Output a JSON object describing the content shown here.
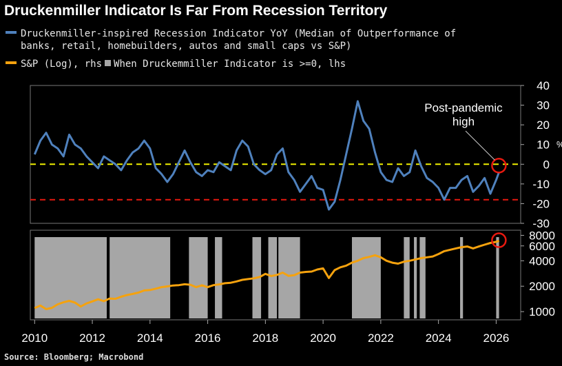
{
  "title": "Druckenmiller Indicator Is Far From Recession Territory",
  "legend": {
    "line1": "Druckenmiller-inspired Recession Indicator YoY (Median of Outperformance of",
    "line2": "banks, retail, homebuilders, autos and small caps vs S&P)",
    "sp_label": "S&P (Log), rhs",
    "shade_label": "When Druckemmiller Indicator is >=0, lhs"
  },
  "source": "Source: Bloomberg; Macrobond",
  "colors": {
    "indicator": "#4f81bd",
    "sp": "#f5a20e",
    "shade": "#a6a6a6",
    "zero_line": "#f0f000",
    "recession_line": "#e8190f",
    "highlight": "#e8190f"
  },
  "chart_data": [
    {
      "type": "line",
      "name": "Druckenmiller-inspired Recession Indicator YoY",
      "axis_side": "right",
      "ylabel": "%",
      "ylim": [
        -30,
        40
      ],
      "yticks": [
        "40",
        "30",
        "20",
        "10",
        "0",
        "-10",
        "-20",
        "-30"
      ],
      "yticks_values": [
        40,
        30,
        20,
        10,
        0,
        -10,
        -20,
        -30
      ],
      "reference_lines": [
        {
          "value": 0,
          "style": "dashed",
          "color": "yellow"
        },
        {
          "value": -18,
          "style": "dashed",
          "color": "red"
        }
      ],
      "annotation": {
        "text_lines": [
          "Post-pandemic",
          "high"
        ],
        "x": 2026.0,
        "y": 0
      },
      "x": [
        2010.0,
        2010.2,
        2010.4,
        2010.6,
        2010.8,
        2011.0,
        2011.2,
        2011.4,
        2011.6,
        2011.8,
        2012.0,
        2012.2,
        2012.4,
        2012.6,
        2012.8,
        2013.0,
        2013.2,
        2013.4,
        2013.6,
        2013.8,
        2014.0,
        2014.2,
        2014.4,
        2014.6,
        2014.8,
        2015.0,
        2015.2,
        2015.4,
        2015.6,
        2015.8,
        2016.0,
        2016.2,
        2016.4,
        2016.6,
        2016.8,
        2017.0,
        2017.2,
        2017.4,
        2017.6,
        2017.8,
        2018.0,
        2018.2,
        2018.4,
        2018.6,
        2018.8,
        2019.0,
        2019.2,
        2019.4,
        2019.6,
        2019.8,
        2020.0,
        2020.2,
        2020.4,
        2020.6,
        2020.8,
        2021.0,
        2021.2,
        2021.4,
        2021.6,
        2021.8,
        2022.0,
        2022.2,
        2022.4,
        2022.6,
        2022.8,
        2023.0,
        2023.2,
        2023.4,
        2023.6,
        2023.8,
        2024.0,
        2024.2,
        2024.4,
        2024.6,
        2024.8,
        2025.0,
        2025.2,
        2025.4,
        2025.6,
        2025.8,
        2026.0,
        2026.1
      ],
      "values": [
        5,
        12,
        16,
        10,
        8,
        4,
        15,
        10,
        8,
        4,
        1,
        -2,
        4,
        2,
        0,
        -3,
        2,
        6,
        8,
        12,
        8,
        -2,
        -5,
        -9,
        -5,
        1,
        7,
        1,
        -4,
        -6,
        -3,
        -4,
        1,
        -1,
        -3,
        7,
        12,
        9,
        0,
        -3,
        -5,
        -3,
        5,
        8,
        -4,
        -8,
        -14,
        -10,
        -6,
        -12,
        -13,
        -23,
        -19,
        -8,
        5,
        18,
        32,
        22,
        18,
        6,
        -4,
        -8,
        -9,
        -2,
        -6,
        -4,
        7,
        -1,
        -7,
        -9,
        -12,
        -18,
        -12,
        -12,
        -8,
        -6,
        -14,
        -11,
        -7,
        -15,
        -8,
        -4
      ]
    },
    {
      "type": "line",
      "name": "S&P (Log)",
      "axis_side": "right",
      "scale": "log",
      "ylim": [
        800,
        9200
      ],
      "yticks": [
        "8000",
        "6000",
        "4000",
        "2000",
        "1000"
      ],
      "yticks_values": [
        8000,
        6000,
        4000,
        2000,
        1000
      ],
      "shaded_periods": [
        [
          2010.0,
          2012.5
        ],
        [
          2012.6,
          2014.7
        ],
        [
          2015.35,
          2016.0
        ],
        [
          2016.25,
          2016.5
        ],
        [
          2017.55,
          2017.85
        ],
        [
          2018.1,
          2018.4
        ],
        [
          2018.45,
          2019.2
        ],
        [
          2021.0,
          2022.0
        ],
        [
          2022.8,
          2023.0
        ],
        [
          2023.15,
          2023.25
        ],
        [
          2023.35,
          2023.55
        ],
        [
          2024.75,
          2024.85
        ],
        [
          2026.0,
          2026.1
        ]
      ],
      "annotation": {
        "x": 2026.0,
        "y": 7000,
        "marker": "circle"
      },
      "x": [
        2010.0,
        2010.2,
        2010.4,
        2010.6,
        2010.8,
        2011.0,
        2011.2,
        2011.4,
        2011.6,
        2011.8,
        2012.0,
        2012.2,
        2012.4,
        2012.6,
        2012.8,
        2013.0,
        2013.2,
        2013.4,
        2013.6,
        2013.8,
        2014.0,
        2014.2,
        2014.4,
        2014.6,
        2014.8,
        2015.0,
        2015.2,
        2015.4,
        2015.6,
        2015.8,
        2016.0,
        2016.2,
        2016.4,
        2016.6,
        2016.8,
        2017.0,
        2017.2,
        2017.4,
        2017.6,
        2017.8,
        2018.0,
        2018.2,
        2018.4,
        2018.6,
        2018.8,
        2019.0,
        2019.2,
        2019.4,
        2019.6,
        2019.8,
        2020.0,
        2020.2,
        2020.4,
        2020.6,
        2020.8,
        2021.0,
        2021.2,
        2021.4,
        2021.6,
        2021.8,
        2022.0,
        2022.2,
        2022.4,
        2022.6,
        2022.8,
        2023.0,
        2023.2,
        2023.4,
        2023.6,
        2023.8,
        2024.0,
        2024.2,
        2024.4,
        2024.6,
        2024.8,
        2025.0,
        2025.2,
        2025.4,
        2025.6,
        2025.8,
        2026.0,
        2026.1
      ],
      "values": [
        1100,
        1180,
        1070,
        1110,
        1220,
        1290,
        1340,
        1280,
        1150,
        1250,
        1320,
        1400,
        1330,
        1430,
        1420,
        1500,
        1570,
        1620,
        1680,
        1780,
        1800,
        1870,
        1950,
        1990,
        2040,
        2060,
        2110,
        2080,
        1950,
        2050,
        1950,
        2060,
        2100,
        2170,
        2200,
        2280,
        2380,
        2430,
        2480,
        2570,
        2800,
        2640,
        2720,
        2900,
        2650,
        2700,
        2900,
        2950,
        2980,
        3150,
        3250,
        2500,
        3100,
        3350,
        3500,
        3800,
        4000,
        4300,
        4450,
        4650,
        4400,
        4000,
        3800,
        3700,
        3900,
        4000,
        4150,
        4300,
        4400,
        4500,
        4800,
        5200,
        5400,
        5600,
        5800,
        5900,
        5600,
        5900,
        6200,
        6500,
        6700,
        6900
      ]
    }
  ],
  "x_axis": {
    "xlim": [
      2009.85,
      2026.85
    ],
    "ticks": [
      "2010",
      "2012",
      "2014",
      "2016",
      "2018",
      "2020",
      "2022",
      "2024",
      "2026"
    ],
    "tick_values": [
      2010,
      2012,
      2014,
      2016,
      2018,
      2020,
      2022,
      2024,
      2026
    ]
  }
}
